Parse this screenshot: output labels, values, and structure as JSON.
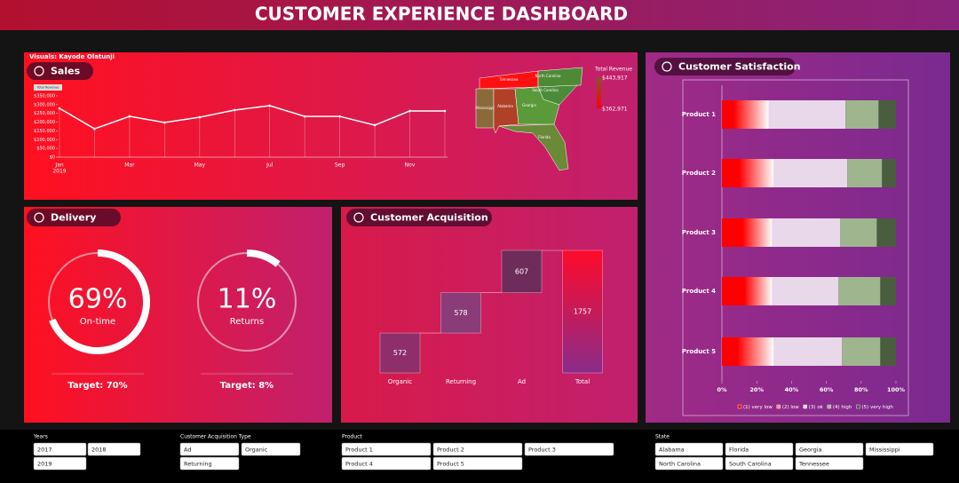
{
  "header": {
    "title": "CUSTOMER EXPERIENCE DASHBOARD"
  },
  "credit": "Visuals: Kayode Olatunji",
  "sales": {
    "title": "Sales",
    "measure": "Total Revenue",
    "chart": {
      "type": "line",
      "categories": [
        "Jan",
        null,
        "Mar",
        null,
        "May",
        null,
        "Jul",
        null,
        "Sep",
        null,
        "Nov",
        null
      ],
      "year": "2019",
      "values": [
        279000,
        162000,
        233000,
        198000,
        228000,
        269000,
        294000,
        233000,
        233000,
        183000,
        264000,
        264000
      ],
      "color": "#ffffff",
      "ylim": [
        0,
        350000
      ],
      "yticks": [
        {
          "value": 0,
          "label": "$0"
        },
        {
          "value": 50000,
          "label": "$50,000"
        },
        {
          "value": 100000,
          "label": "$100,000"
        },
        {
          "value": 150000,
          "label": "$150,000"
        },
        {
          "value": 200000,
          "label": "$200,000"
        },
        {
          "value": 250000,
          "label": "$250,000"
        },
        {
          "value": 300000,
          "label": "$300,000"
        },
        {
          "value": 350000,
          "label": "$350,000"
        }
      ]
    }
  },
  "map": {
    "legend_title": "Total Revenue",
    "legend_max": "$443,917",
    "legend_min": "$362,971",
    "states": [
      "Tennessee",
      "North Carolina",
      "South Carolina",
      "Mississippi",
      "Alabama",
      "Georgia",
      "Florida"
    ]
  },
  "delivery": {
    "title": "Delivery",
    "gauges": [
      {
        "value": 69,
        "value_label": "69%",
        "name": "On-time",
        "target": "Target: 70%"
      },
      {
        "value": 11,
        "value_label": "11%",
        "name": "Returns",
        "target": "Target: 8%"
      }
    ]
  },
  "acquisition": {
    "title": "Customer Acquisition",
    "chart": {
      "type": "waterfall",
      "categories": [
        "Organic",
        "Returning",
        "Ad",
        "Total"
      ],
      "values": [
        572,
        578,
        607,
        1757
      ],
      "colors": [
        "#8e2f6a",
        "#8a3c78",
        "#6e2c5a",
        "#ff0a2a"
      ]
    }
  },
  "satisfaction": {
    "title": "Customer Satisfaction",
    "chart": {
      "type": "bar",
      "orientation": "horizontal",
      "stacked": true,
      "categories": [
        "Product 1",
        "Product 2",
        "Product 3",
        "Product 4",
        "Product 5"
      ],
      "series": [
        {
          "name": "(1) very low",
          "color": "#ff0000",
          "values": [
            7,
            10,
            12,
            13,
            9
          ]
        },
        {
          "name": "(2) low",
          "color": "#ff8a8a",
          "values": [
            20,
            20,
            17,
            16,
            21
          ]
        },
        {
          "name": "(3) ok",
          "color": "#e8d8ea",
          "values": [
            44,
            42,
            39,
            38,
            39
          ]
        },
        {
          "name": "(4) high",
          "color": "#9fb58e",
          "values": [
            19,
            20,
            21,
            24,
            22
          ]
        },
        {
          "name": "(5) very high",
          "color": "#4a5e3f",
          "values": [
            10,
            8,
            11,
            9,
            9
          ]
        }
      ],
      "xlim": [
        0,
        100
      ],
      "xticks": [
        {
          "value": 0,
          "label": "0%"
        },
        {
          "value": 20,
          "label": "20%"
        },
        {
          "value": 40,
          "label": "40%"
        },
        {
          "value": 60,
          "label": "60%"
        },
        {
          "value": 80,
          "label": "80%"
        },
        {
          "value": 100,
          "label": "100%"
        }
      ]
    }
  },
  "slicers": [
    {
      "title": "Years",
      "items": [
        "2017",
        "2018",
        "2019"
      ]
    },
    {
      "title": "Customer Acquisition Type",
      "items": [
        "Ad",
        "Organic",
        "Returning"
      ]
    },
    {
      "title": "Product",
      "items": [
        "Product 1",
        "Product 2",
        "Product 3",
        "Product 4",
        "Product 5"
      ]
    },
    {
      "title": "State",
      "items": [
        "Alabama",
        "Florida",
        "Georgia",
        "Mississippi",
        "North Carolina",
        "South Carolina",
        "Tennessee"
      ]
    }
  ]
}
